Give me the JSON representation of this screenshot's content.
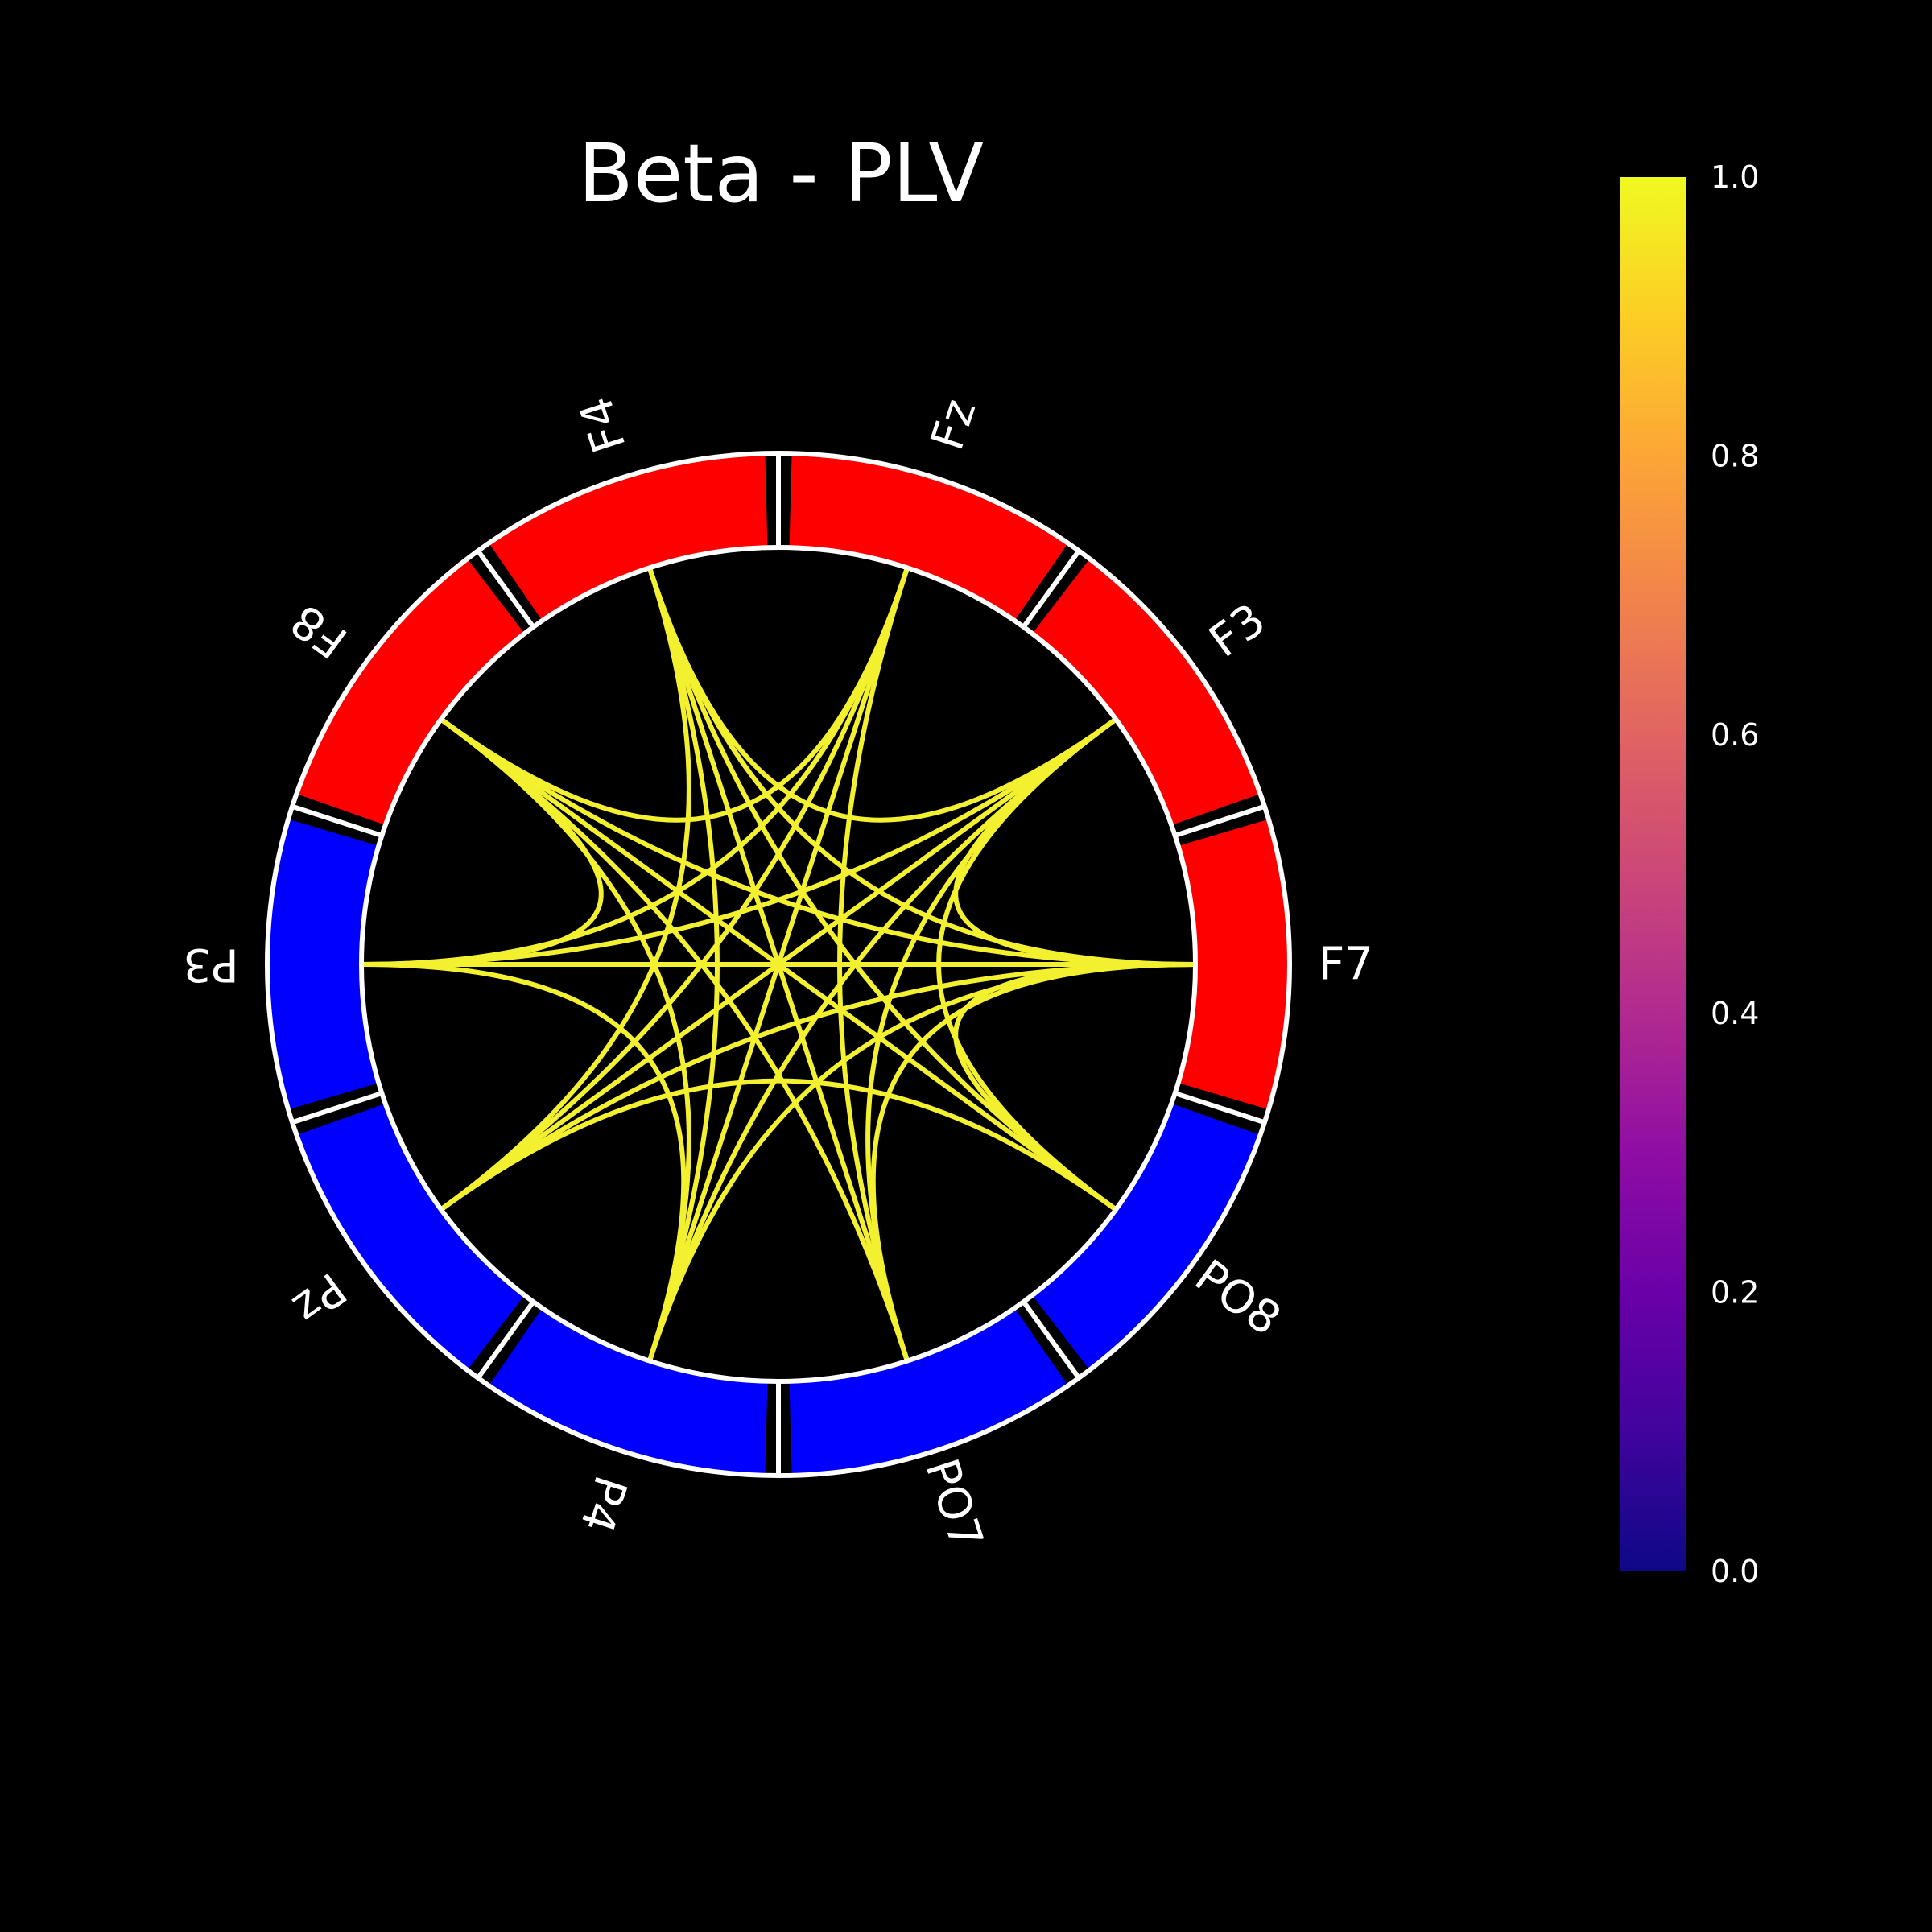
{
  "title": "Beta - PLV",
  "colors": {
    "background": "#000000",
    "ring_outline": "#ffffff",
    "connection": "#f3f030"
  },
  "nodes": [
    {
      "label": "F7",
      "group_color": "#ff0000"
    },
    {
      "label": "F3",
      "group_color": "#ff0000"
    },
    {
      "label": "Fz",
      "group_color": "#ff0000"
    },
    {
      "label": "F4",
      "group_color": "#ff0000"
    },
    {
      "label": "F8",
      "group_color": "#ff0000"
    },
    {
      "label": "P3",
      "group_color": "#0000ff"
    },
    {
      "label": "Pz",
      "group_color": "#0000ff"
    },
    {
      "label": "P4",
      "group_color": "#0000ff"
    },
    {
      "label": "PO7",
      "group_color": "#0000ff"
    },
    {
      "label": "PO8",
      "group_color": "#0000ff"
    }
  ],
  "connections": [
    {
      "from": "F7",
      "to": "F3",
      "value": 1.0
    },
    {
      "from": "F7",
      "to": "F4",
      "value": 1.0
    },
    {
      "from": "F7",
      "to": "F8",
      "value": 1.0
    },
    {
      "from": "F7",
      "to": "P3",
      "value": 1.0
    },
    {
      "from": "F7",
      "to": "Pz",
      "value": 1.0
    },
    {
      "from": "F7",
      "to": "P4",
      "value": 1.0
    },
    {
      "from": "F7",
      "to": "PO7",
      "value": 1.0
    },
    {
      "from": "F7",
      "to": "PO8",
      "value": 1.0
    },
    {
      "from": "F3",
      "to": "F4",
      "value": 1.0
    },
    {
      "from": "F3",
      "to": "P3",
      "value": 1.0
    },
    {
      "from": "F3",
      "to": "Pz",
      "value": 1.0
    },
    {
      "from": "F3",
      "to": "P4",
      "value": 1.0
    },
    {
      "from": "F3",
      "to": "PO7",
      "value": 1.0
    },
    {
      "from": "F3",
      "to": "PO8",
      "value": 1.0
    },
    {
      "from": "Fz",
      "to": "F8",
      "value": 1.0
    },
    {
      "from": "Fz",
      "to": "P3",
      "value": 1.0
    },
    {
      "from": "Fz",
      "to": "Pz",
      "value": 1.0
    },
    {
      "from": "Fz",
      "to": "P4",
      "value": 1.0
    },
    {
      "from": "Fz",
      "to": "PO7",
      "value": 1.0
    },
    {
      "from": "F4",
      "to": "Pz",
      "value": 1.0
    },
    {
      "from": "F4",
      "to": "P4",
      "value": 1.0
    },
    {
      "from": "F4",
      "to": "PO7",
      "value": 1.0
    },
    {
      "from": "F4",
      "to": "PO8",
      "value": 1.0
    },
    {
      "from": "F8",
      "to": "P3",
      "value": 1.0
    },
    {
      "from": "F8",
      "to": "P4",
      "value": 1.0
    },
    {
      "from": "F8",
      "to": "PO7",
      "value": 1.0
    },
    {
      "from": "F8",
      "to": "PO8",
      "value": 1.0
    },
    {
      "from": "P3",
      "to": "P4",
      "value": 1.0
    },
    {
      "from": "Pz",
      "to": "PO8",
      "value": 1.0
    }
  ],
  "colorbar": {
    "colormap": "plasma",
    "vmin": 0.0,
    "vmax": 1.0,
    "ticks": [
      "0.0",
      "0.2",
      "0.4",
      "0.6",
      "0.8",
      "1.0"
    ]
  }
}
